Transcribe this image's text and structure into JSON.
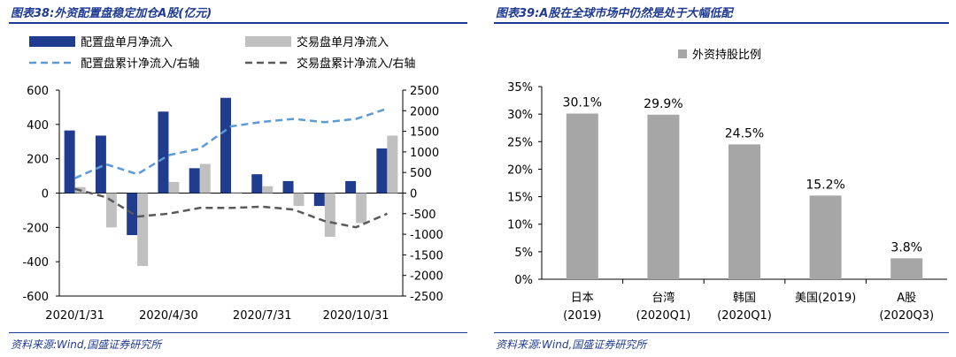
{
  "left_panel": {
    "title": "图表38:外资配置盘稳定加仓A股(亿元)",
    "source": "资料来源:Wind,国盛证券研究所"
  },
  "right_panel": {
    "title": "图表39:A股在全球市场中仍然是处于大幅低配",
    "source": "资料来源:Wind,国盛证券研究所"
  },
  "colors": {
    "header_blue": "#1f3a93",
    "series_bar_blue": "#1f3c8f",
    "series_bar_gray": "#c0c0c0",
    "series_line_blue": "#5b9bd5",
    "series_line_gray": "#595959",
    "right_bar": "#a6a6a6"
  },
  "chart_data": [
    {
      "type": "bar",
      "x_tick_labels": [
        "2020/1/31",
        "2020/4/30",
        "2020/7/31",
        "2020/10/31"
      ],
      "x_tick_positions": [
        0,
        3,
        6,
        9
      ],
      "ylim_left": [
        -600,
        600
      ],
      "yticks_left": [
        600,
        400,
        200,
        0,
        -200,
        -400,
        -600
      ],
      "ylim_right": [
        -2500,
        2500
      ],
      "yticks_right": [
        2500,
        2000,
        1500,
        1000,
        500,
        0,
        -500,
        -1000,
        -1500,
        -2000,
        -2500
      ],
      "legend_placement": "top",
      "series": [
        {
          "name": "配置盘单月净流入",
          "kind": "bar",
          "axis": "left",
          "values": [
            365,
            335,
            -245,
            475,
            145,
            555,
            110,
            70,
            -75,
            70,
            260
          ]
        },
        {
          "name": "交易盘单月净流入",
          "kind": "bar",
          "axis": "left",
          "values": [
            35,
            -200,
            -425,
            65,
            170,
            5,
            40,
            -75,
            -255,
            -175,
            335
          ]
        },
        {
          "name": "配置盘累计净流入/右轴",
          "kind": "line",
          "style": "dashed",
          "axis": "right",
          "values": [
            360,
            700,
            460,
            920,
            1080,
            1620,
            1730,
            1800,
            1720,
            1800,
            2050
          ]
        },
        {
          "name": "交易盘累计净流入/右轴",
          "kind": "line",
          "style": "dashed",
          "axis": "right",
          "values": [
            100,
            -100,
            -570,
            -500,
            -360,
            -360,
            -330,
            -400,
            -680,
            -830,
            -500
          ]
        }
      ]
    },
    {
      "type": "bar",
      "categories": [
        "日本\n(2019)",
        "台湾\n(2020Q1)",
        "韩国\n(2020Q1)",
        "美国(2019)",
        "A股\n(2020Q3)"
      ],
      "values": [
        30.1,
        29.9,
        24.5,
        15.2,
        3.8
      ],
      "data_labels": [
        "30.1%",
        "29.9%",
        "24.5%",
        "15.2%",
        "3.8%"
      ],
      "ylim": [
        0,
        35
      ],
      "yticks": [
        35,
        30,
        25,
        20,
        15,
        10,
        5,
        0
      ],
      "ytick_labels": [
        "35%",
        "30%",
        "25%",
        "20%",
        "15%",
        "10%",
        "5%",
        "0%"
      ],
      "legend_placement": "top",
      "series": [
        {
          "name": "外资持股比例",
          "values": [
            30.1,
            29.9,
            24.5,
            15.2,
            3.8
          ]
        }
      ]
    }
  ]
}
